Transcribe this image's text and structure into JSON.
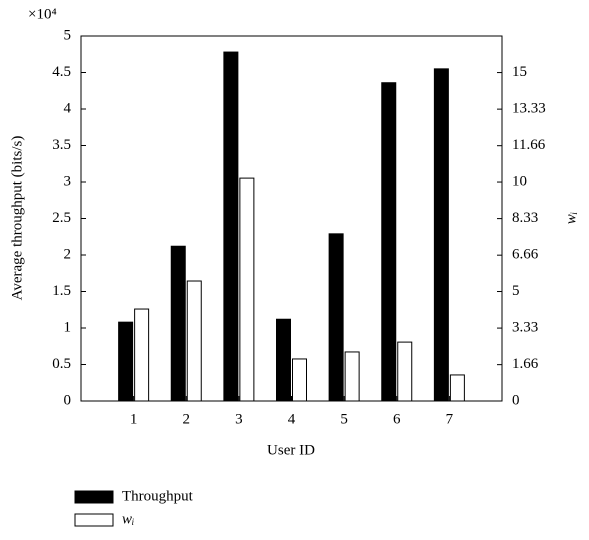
{
  "chart_data": {
    "type": "bar",
    "multiplier_label": "×10⁴",
    "y_label": "Average throughput (bits/s)",
    "y2_label": "wᵢ",
    "x_label": "User ID",
    "categories": [
      "1",
      "2",
      "3",
      "4",
      "5",
      "6",
      "7"
    ],
    "series": [
      {
        "name": "Throughput",
        "color": "#000000",
        "values": [
          1.08,
          2.12,
          4.78,
          1.12,
          2.29,
          4.36,
          4.55
        ]
      },
      {
        "name": "wᵢ",
        "color": "#ffffff",
        "axis": "y2",
        "values": [
          4.2,
          5.48,
          10.18,
          1.92,
          2.24,
          2.69,
          1.19
        ]
      }
    ],
    "ylim": [
      0,
      5
    ],
    "yticks": [
      0,
      0.5,
      1,
      1.5,
      2,
      2.5,
      3,
      3.5,
      4,
      4.5,
      5
    ],
    "y2lim": [
      0,
      16.67
    ],
    "y2ticks": [
      0,
      1.66,
      3.33,
      5,
      6.66,
      8.33,
      10,
      11.66,
      13.33,
      15
    ],
    "grid": false,
    "legend": "bottom-left"
  }
}
